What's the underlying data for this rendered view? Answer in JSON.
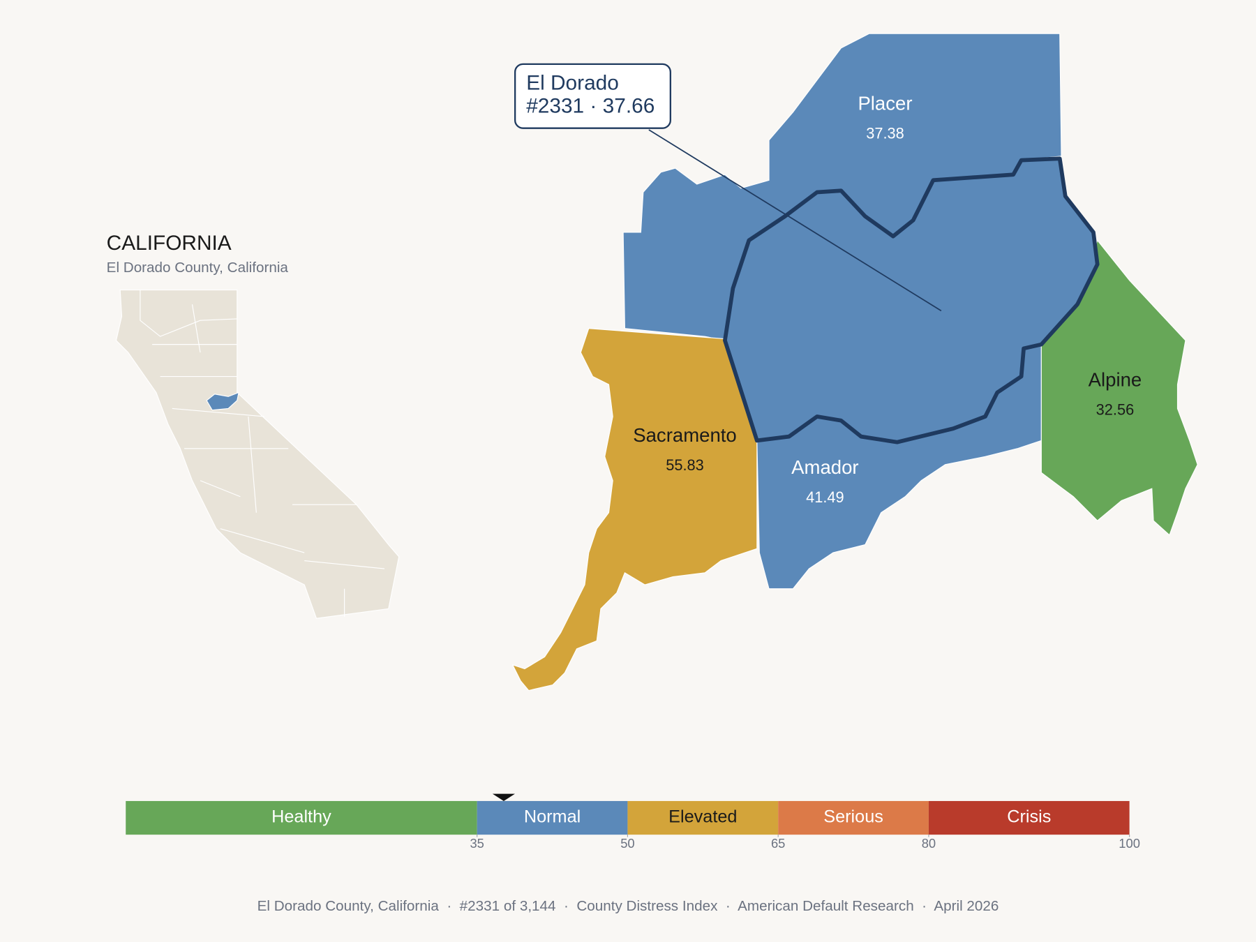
{
  "header": {
    "title": "CALIFORNIA",
    "subtitle": "El Dorado County, California"
  },
  "map": {
    "type": "choropleth",
    "counties": [
      {
        "name": "El Dorado",
        "value": 37.66,
        "callout": "#2331 · 37.66"
      },
      {
        "name": "Placer",
        "value": 37.38
      },
      {
        "name": "Sacramento",
        "value": 55.83
      },
      {
        "name": "Amador",
        "value": 41.49
      },
      {
        "name": "Alpine",
        "value": 32.56
      }
    ]
  },
  "scale": {
    "xlim": [
      0,
      100
    ],
    "ticks": [
      35,
      50,
      65,
      80,
      100
    ],
    "bands": [
      {
        "label": "Healthy",
        "from": 0,
        "to": 35,
        "color": "#67a758",
        "text_color": "#ffffff"
      },
      {
        "label": "Normal",
        "from": 35,
        "to": 50,
        "color": "#5b89b9",
        "text_color": "#ffffff"
      },
      {
        "label": "Elevated",
        "from": 50,
        "to": 65,
        "color": "#d3a43a",
        "text_color": "#1a1a1a"
      },
      {
        "label": "Serious",
        "from": 65,
        "to": 80,
        "color": "#dc7a48",
        "text_color": "#ffffff"
      },
      {
        "label": "Crisis",
        "from": 80,
        "to": 100,
        "color": "#b93b2b",
        "text_color": "#ffffff"
      }
    ]
  },
  "footer": "El Dorado County, California  ·  #2331 of 3,144  ·  County Distress Index  ·  American Default Research  ·  April 2026"
}
